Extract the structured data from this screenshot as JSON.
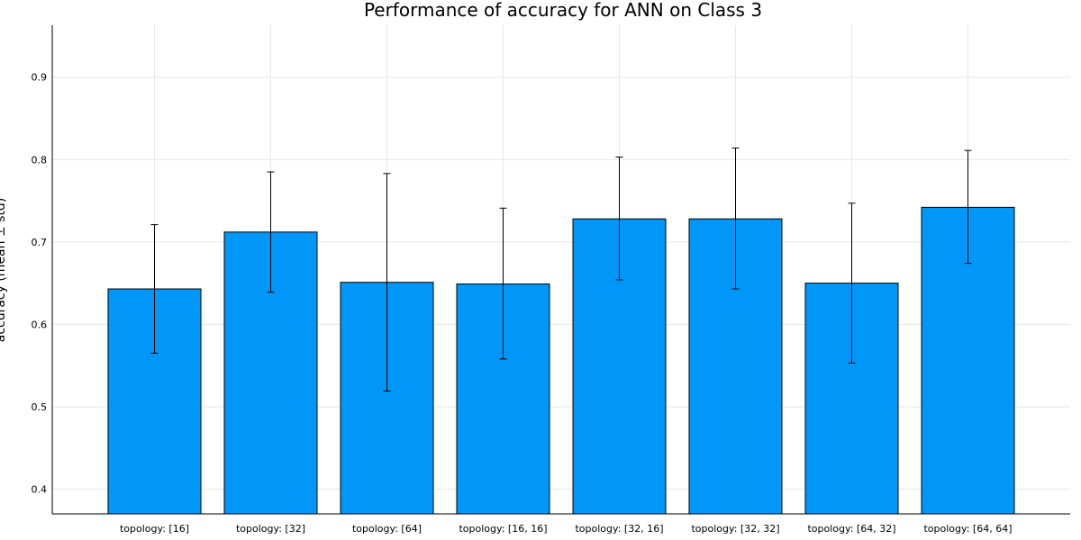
{
  "chart_data": {
    "type": "bar",
    "title": "Performance of accuracy for ANN on Class 3",
    "xlabel": "",
    "ylabel": "accuracy (mean ± std)",
    "categories": [
      "topology: [16]",
      "topology: [32]",
      "topology: [64]",
      "topology: [16, 16]",
      "topology: [32, 16]",
      "topology: [32, 32]",
      "topology: [64, 32]",
      "topology: [64, 64]"
    ],
    "values": [
      0.643,
      0.712,
      0.651,
      0.649,
      0.728,
      0.728,
      0.65,
      0.742
    ],
    "error_low": [
      0.565,
      0.639,
      0.519,
      0.558,
      0.654,
      0.643,
      0.553,
      0.674
    ],
    "error_high": [
      0.721,
      0.785,
      0.783,
      0.741,
      0.803,
      0.814,
      0.747,
      0.811
    ],
    "ylim": [
      0.37,
      0.963
    ],
    "yticks": [
      0.4,
      0.5,
      0.6,
      0.7,
      0.8,
      0.9
    ],
    "grid": true,
    "legend": "none",
    "bar_color": "#0097f9"
  }
}
